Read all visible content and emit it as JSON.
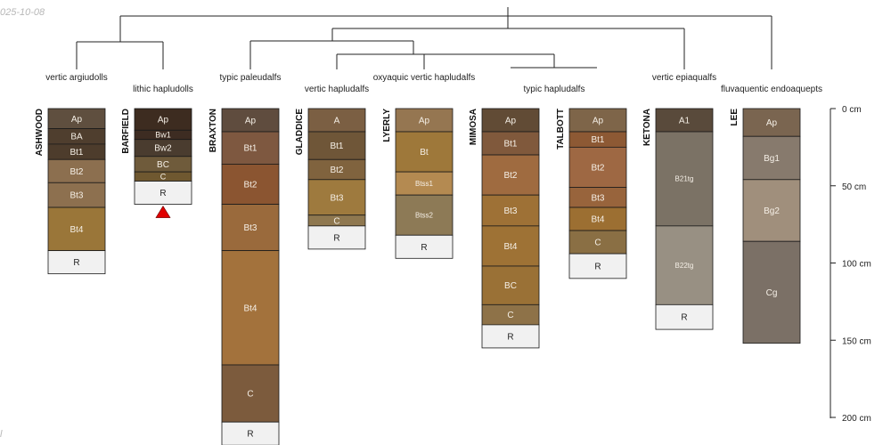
{
  "meta": {
    "stamp": "025-10-08",
    "corner_mark": "l"
  },
  "chart_data": {
    "type": "soil-profile-dendrogram",
    "depth_axis": {
      "unit": "cm",
      "ticks": [
        "0 cm",
        "50 cm",
        "100 cm",
        "150 cm",
        "200 cm"
      ],
      "tick_values": [
        0,
        50,
        100,
        150,
        200
      ],
      "range": [
        0,
        200
      ]
    },
    "taxa": [
      "vertic argiudolls",
      "lithic hapludolls",
      "typic paleudalfs",
      "vertic hapludalfs",
      "oxyaquic vertic hapludalfs",
      "typic hapludalfs",
      "vertic epiaqualfs",
      "fluvaquentic endoaquepts"
    ],
    "profiles": [
      {
        "name": "ASHWOOD",
        "bottom_depth": 107,
        "flag": false,
        "horizons": [
          {
            "name": "Ap",
            "top": 0,
            "bottom": 13,
            "color": "#5f4f3f"
          },
          {
            "name": "BA",
            "top": 13,
            "bottom": 23,
            "color": "#4f3e2e"
          },
          {
            "name": "Bt1",
            "top": 23,
            "bottom": 33,
            "color": "#4d3c2c"
          },
          {
            "name": "Bt2",
            "top": 33,
            "bottom": 48,
            "color": "#8c6f4f"
          },
          {
            "name": "Bt3",
            "top": 48,
            "bottom": 64,
            "color": "#8d704f"
          },
          {
            "name": "Bt4",
            "top": 64,
            "bottom": 92,
            "color": "#9a7639"
          },
          {
            "name": "R",
            "top": 92,
            "bottom": 107,
            "color": "#f1f1f1"
          }
        ]
      },
      {
        "name": "BARFIELD",
        "bottom_depth": 62,
        "flag": true,
        "horizons": [
          {
            "name": "Ap",
            "top": 0,
            "bottom": 14,
            "color": "#3d2c20"
          },
          {
            "name": "Bw1",
            "top": 14,
            "bottom": 20,
            "color": "#3d2c22"
          },
          {
            "name": "Bw2",
            "top": 20,
            "bottom": 31,
            "color": "#4a3c2f"
          },
          {
            "name": "BC",
            "top": 31,
            "bottom": 41,
            "color": "#6f5b3b"
          },
          {
            "name": "C",
            "top": 41,
            "bottom": 47,
            "color": "#6f5830"
          },
          {
            "name": "R",
            "top": 47,
            "bottom": 62,
            "color": "#f1f1f1"
          }
        ]
      },
      {
        "name": "BRAXTON",
        "bottom_depth": 218,
        "flag": false,
        "horizons": [
          {
            "name": "Ap",
            "top": 0,
            "bottom": 15,
            "color": "#5f4c3e"
          },
          {
            "name": "Bt1",
            "top": 15,
            "bottom": 36,
            "color": "#7e5840"
          },
          {
            "name": "Bt2",
            "top": 36,
            "bottom": 62,
            "color": "#8b5531"
          },
          {
            "name": "Bt3",
            "top": 62,
            "bottom": 92,
            "color": "#9a6a3c"
          },
          {
            "name": "Bt4",
            "top": 92,
            "bottom": 166,
            "color": "#a3723c"
          },
          {
            "name": "C",
            "top": 166,
            "bottom": 203,
            "color": "#7c5b3d"
          },
          {
            "name": "R",
            "top": 203,
            "bottom": 218,
            "color": "#f1f1f1"
          }
        ]
      },
      {
        "name": "GLADDICE",
        "bottom_depth": 91,
        "flag": false,
        "horizons": [
          {
            "name": "A",
            "top": 0,
            "bottom": 15,
            "color": "#7b5f43"
          },
          {
            "name": "Bt1",
            "top": 15,
            "bottom": 33,
            "color": "#6f5638"
          },
          {
            "name": "Bt2",
            "top": 33,
            "bottom": 46,
            "color": "#80633e"
          },
          {
            "name": "Bt3",
            "top": 46,
            "bottom": 69,
            "color": "#9e7a3e"
          },
          {
            "name": "C",
            "top": 69,
            "bottom": 76,
            "color": "#8f7850"
          },
          {
            "name": "R",
            "top": 76,
            "bottom": 91,
            "color": "#f1f1f1"
          }
        ]
      },
      {
        "name": "LYERLY",
        "bottom_depth": 97,
        "flag": false,
        "horizons": [
          {
            "name": "Ap",
            "top": 0,
            "bottom": 15,
            "color": "#957651"
          },
          {
            "name": "Bt",
            "top": 15,
            "bottom": 41,
            "color": "#9e783a"
          },
          {
            "name": "Btss1",
            "top": 41,
            "bottom": 56,
            "color": "#b48a51"
          },
          {
            "name": "Btss2",
            "top": 56,
            "bottom": 82,
            "color": "#8d7a56"
          },
          {
            "name": "R",
            "top": 82,
            "bottom": 97,
            "color": "#f1f1f1"
          }
        ]
      },
      {
        "name": "MIMOSA",
        "bottom_depth": 155,
        "flag": false,
        "horizons": [
          {
            "name": "Ap",
            "top": 0,
            "bottom": 15,
            "color": "#614b35"
          },
          {
            "name": "Bt1",
            "top": 15,
            "bottom": 30,
            "color": "#80593c"
          },
          {
            "name": "Bt2",
            "top": 30,
            "bottom": 56,
            "color": "#9f6b40"
          },
          {
            "name": "Bt3",
            "top": 56,
            "bottom": 76,
            "color": "#9e7136"
          },
          {
            "name": "Bt4",
            "top": 76,
            "bottom": 102,
            "color": "#9e7235"
          },
          {
            "name": "BC",
            "top": 102,
            "bottom": 127,
            "color": "#9a7136"
          },
          {
            "name": "C",
            "top": 127,
            "bottom": 140,
            "color": "#8e7248"
          },
          {
            "name": "R",
            "top": 140,
            "bottom": 155,
            "color": "#f1f1f1"
          }
        ]
      },
      {
        "name": "TALBOTT",
        "bottom_depth": 110,
        "flag": false,
        "horizons": [
          {
            "name": "Ap",
            "top": 0,
            "bottom": 15,
            "color": "#7e6549"
          },
          {
            "name": "Bt1",
            "top": 15,
            "bottom": 25,
            "color": "#8d5934"
          },
          {
            "name": "Bt2",
            "top": 25,
            "bottom": 51,
            "color": "#9e6843"
          },
          {
            "name": "Bt3",
            "top": 51,
            "bottom": 64,
            "color": "#98643c"
          },
          {
            "name": "Bt4",
            "top": 64,
            "bottom": 79,
            "color": "#9c6f32"
          },
          {
            "name": "C",
            "top": 79,
            "bottom": 94,
            "color": "#8a6f44"
          },
          {
            "name": "R",
            "top": 94,
            "bottom": 110,
            "color": "#f1f1f1"
          }
        ]
      },
      {
        "name": "KETONA",
        "bottom_depth": 143,
        "flag": false,
        "horizons": [
          {
            "name": "A1",
            "top": 0,
            "bottom": 15,
            "color": "#594a3b"
          },
          {
            "name": "B21tg",
            "top": 15,
            "bottom": 76,
            "color": "#7b7265"
          },
          {
            "name": "B22tg",
            "top": 76,
            "bottom": 127,
            "color": "#989083"
          },
          {
            "name": "R",
            "top": 127,
            "bottom": 143,
            "color": "#f1f1f1"
          }
        ]
      },
      {
        "name": "LEE",
        "bottom_depth": 152,
        "flag": false,
        "horizons": [
          {
            "name": "Ap",
            "top": 0,
            "bottom": 18,
            "color": "#7a6550"
          },
          {
            "name": "Bg1",
            "top": 18,
            "bottom": 46,
            "color": "#877a6d"
          },
          {
            "name": "Bg2",
            "top": 46,
            "bottom": 86,
            "color": "#a08f7c"
          },
          {
            "name": "Cg",
            "top": 86,
            "bottom": 152,
            "color": "#7b7066"
          }
        ]
      }
    ],
    "marker_color": "#e00000"
  }
}
